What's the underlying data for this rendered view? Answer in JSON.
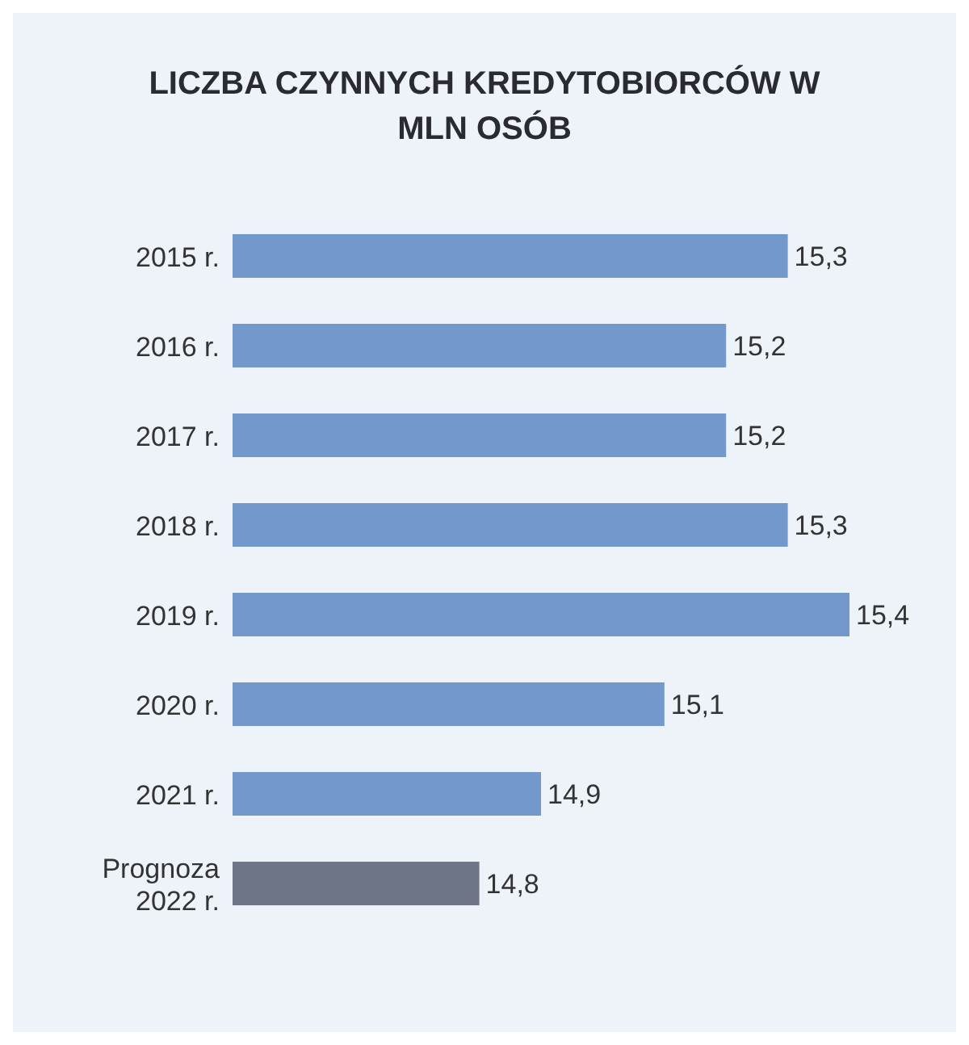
{
  "chart_data": {
    "type": "bar",
    "orientation": "horizontal",
    "title": "LICZBA CZYNNYCH KREDYTOBIORCÓW W MLN OSÓB",
    "categories": [
      "2015 r.",
      "2016 r.",
      "2017 r.",
      "2018 r.",
      "2019 r.",
      "2020 r.",
      "2021 r.",
      "Prognoza 2022 r."
    ],
    "values": [
      15.3,
      15.2,
      15.2,
      15.3,
      15.4,
      15.1,
      14.9,
      14.8
    ],
    "colors": [
      "#7399cc",
      "#7399cc",
      "#7399cc",
      "#7399cc",
      "#7399cc",
      "#7399cc",
      "#7399cc",
      "#6e7585"
    ],
    "value_labels": [
      "15,3",
      "15,2",
      "15,2",
      "15,3",
      "15,4",
      "15,1",
      "14,9",
      "14,8"
    ],
    "xlim": [
      14.4,
      15.4
    ],
    "tick_labels": "y"
  }
}
